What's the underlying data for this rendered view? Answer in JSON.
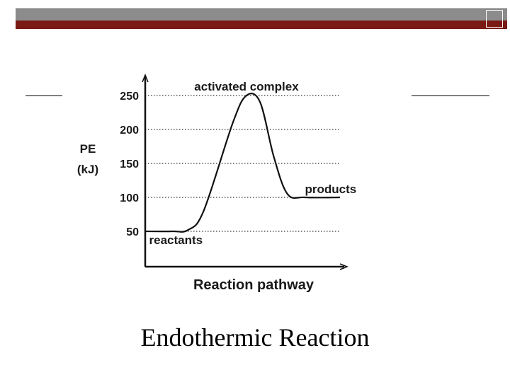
{
  "slide": {
    "caption": "Endothermic Reaction",
    "accent_color": "#7a1a14",
    "bar_color": "#8c8c8c"
  },
  "chart_data": {
    "type": "line",
    "title": "",
    "xlabel": "Reaction pathway",
    "ylabel": "PE (kJ)",
    "ylabel_lines": [
      "PE",
      "(kJ)"
    ],
    "yticks": [
      50,
      100,
      150,
      200,
      250
    ],
    "ylim": [
      0,
      260
    ],
    "grid": "dotted horizontal",
    "series": [
      {
        "x": [
          0,
          0.14,
          0.22,
          0.3,
          0.45,
          0.52,
          0.59,
          0.66,
          0.73,
          0.82,
          1.0
        ],
        "y": [
          50,
          50,
          52,
          80,
          210,
          250,
          240,
          160,
          105,
          100,
          100
        ]
      }
    ],
    "annotations": [
      {
        "text": "reactants",
        "x": 0.02,
        "y": 50
      },
      {
        "text": "activated complex",
        "x": 0.52,
        "y": 250
      },
      {
        "text": "products",
        "x": 0.82,
        "y": 100
      }
    ]
  }
}
